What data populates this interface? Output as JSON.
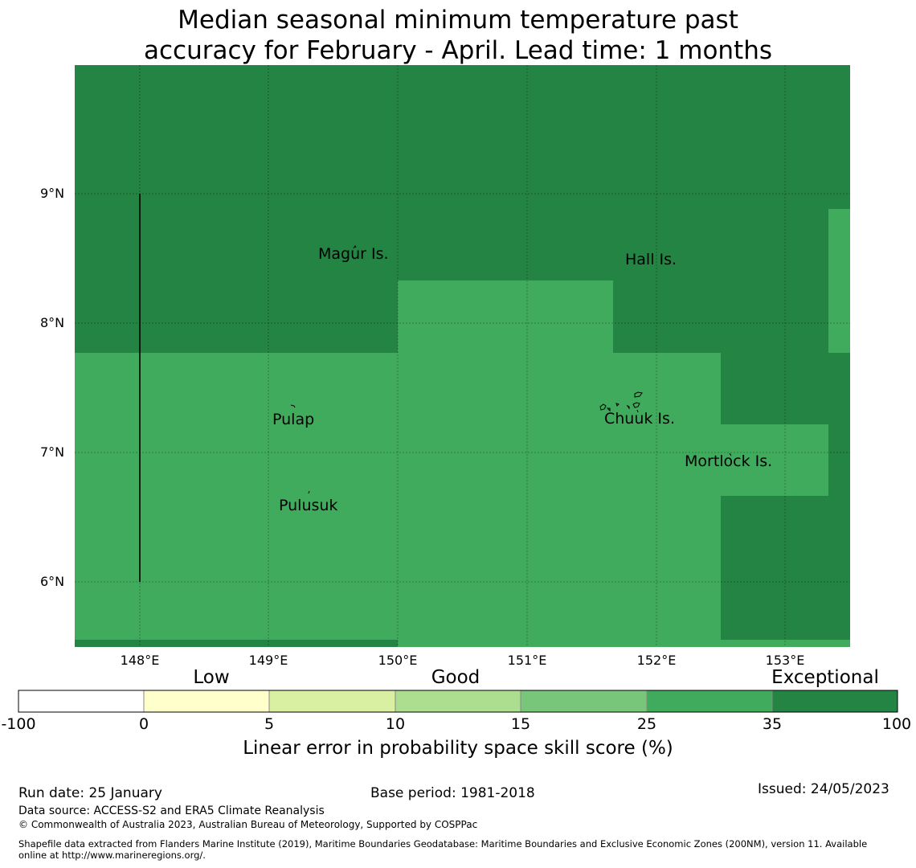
{
  "title_line1": "Median seasonal minimum temperature past",
  "title_line2": "accuracy for February - April. Lead time: 1 months",
  "map": {
    "lat_ticks": [
      "9°N",
      "8°N",
      "7°N",
      "6°N"
    ],
    "lon_ticks": [
      "148°E",
      "149°E",
      "150°E",
      "151°E",
      "152°E",
      "153°E"
    ],
    "places": [
      "Magur Is.",
      "Hall Is.",
      "Pulap",
      "Chuuk Is.",
      "Mortlock Is.",
      "Pulusuk"
    ],
    "colors": {
      "exceptional": "#238443",
      "good_high": "#41ab5d"
    }
  },
  "legend": {
    "categories": [
      "Low",
      "Good",
      "Exceptional"
    ],
    "ticks": [
      "-100",
      "0",
      "5",
      "10",
      "15",
      "25",
      "35",
      "100"
    ],
    "colors": [
      "#ffffff",
      "#ffffcc",
      "#d9f0a3",
      "#addd8e",
      "#78c679",
      "#41ab5d",
      "#238443"
    ],
    "title": "Linear error in probability space skill score (%)"
  },
  "footer": {
    "run_date": "Run date: 25 January",
    "base_period": "Base period: 1981-2018",
    "issued": "Issued: 24/05/2023",
    "data_source": "Data source: ACCESS-S2 and ERA5 Climate Reanalysis",
    "copyright": "© Commonwealth of Australia 2023, Australian Bureau of Meteorology, Supported by COSPPac",
    "shapefile_line1": "Shapefile data extracted from Flanders Marine Institute (2019), Maritime Boundaries Geodatabase: Maritime Boundaries and Exclusive Economic Zones (200NM), version 11. Available",
    "shapefile_line2": "online at http://www.marineregions.org/."
  }
}
